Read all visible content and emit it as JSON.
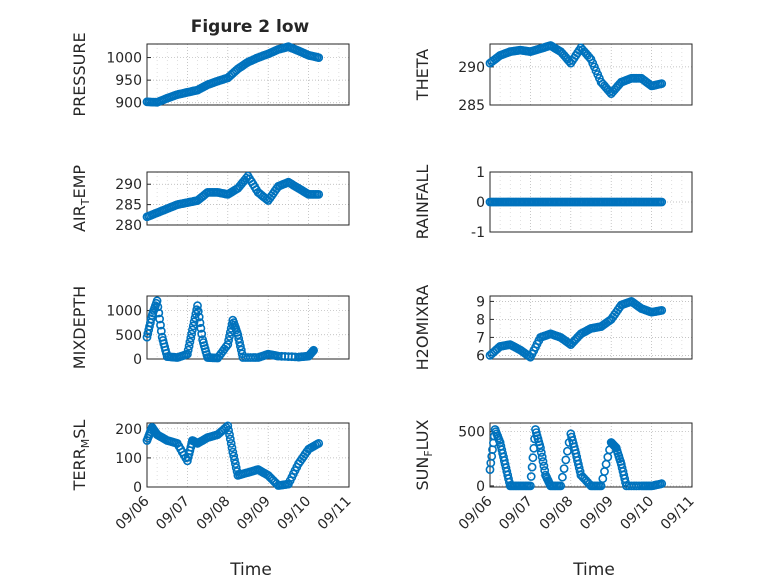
{
  "figure": {
    "title": "Figure 2 low",
    "time_label": "Time"
  },
  "colors": {
    "marker": "#0072BD",
    "axis": "#262626",
    "grid": "#b0b0b0",
    "background": "#ffffff"
  },
  "chart_data": [
    {
      "type": "scatter",
      "ylabel": "PRESSURE",
      "ylabel_sub": "",
      "ylim": [
        895,
        1030
      ],
      "yticks": [
        900,
        950,
        1000
      ],
      "x": [
        "09/06",
        "09/07",
        "09/08",
        "09/09",
        "09/10",
        "09/11"
      ],
      "grid": true,
      "series": [
        {
          "points": [
            [
              "2021-09-06T00:00",
              902
            ],
            [
              "2021-09-06T06:00",
              901
            ],
            [
              "2021-09-06T12:00",
              910
            ],
            [
              "2021-09-06T18:00",
              918
            ],
            [
              "2021-09-07T00:00",
              923
            ],
            [
              "2021-09-07T06:00",
              928
            ],
            [
              "2021-09-07T12:00",
              940
            ],
            [
              "2021-09-07T18:00",
              948
            ],
            [
              "2021-09-08T00:00",
              955
            ],
            [
              "2021-09-08T06:00",
              975
            ],
            [
              "2021-09-08T12:00",
              990
            ],
            [
              "2021-09-08T18:00",
              1000
            ],
            [
              "2021-09-09T00:00",
              1008
            ],
            [
              "2021-09-09T06:00",
              1018
            ],
            [
              "2021-09-09T12:00",
              1024
            ],
            [
              "2021-09-09T18:00",
              1015
            ],
            [
              "2021-09-10T00:00",
              1005
            ],
            [
              "2021-09-10T06:00",
              1000
            ]
          ]
        }
      ]
    },
    {
      "type": "scatter",
      "ylabel": "THETA",
      "ylabel_sub": "",
      "ylim": [
        285,
        293
      ],
      "yticks": [
        285,
        290
      ],
      "x": [
        "09/06",
        "09/07",
        "09/08",
        "09/09",
        "09/10",
        "09/11"
      ],
      "grid": true,
      "series": [
        {
          "points": [
            [
              "2021-09-06T00:00",
              290.5
            ],
            [
              "2021-09-06T06:00",
              291.5
            ],
            [
              "2021-09-06T12:00",
              292.0
            ],
            [
              "2021-09-06T18:00",
              292.2
            ],
            [
              "2021-09-07T00:00",
              292.0
            ],
            [
              "2021-09-07T06:00",
              292.4
            ],
            [
              "2021-09-07T12:00",
              292.8
            ],
            [
              "2021-09-07T18:00",
              292.0
            ],
            [
              "2021-09-08T00:00",
              290.5
            ],
            [
              "2021-09-08T06:00",
              292.5
            ],
            [
              "2021-09-08T12:00",
              291.0
            ],
            [
              "2021-09-08T18:00",
              288.0
            ],
            [
              "2021-09-09T00:00",
              286.5
            ],
            [
              "2021-09-09T06:00",
              288.0
            ],
            [
              "2021-09-09T12:00",
              288.5
            ],
            [
              "2021-09-09T18:00",
              288.5
            ],
            [
              "2021-09-10T00:00",
              287.5
            ],
            [
              "2021-09-10T06:00",
              287.8
            ]
          ]
        }
      ]
    },
    {
      "type": "scatter",
      "ylabel": "AIR",
      "ylabel_sub": "T",
      "ylabel_rest": "EMP",
      "ylim": [
        280,
        293
      ],
      "yticks": [
        280,
        285,
        290
      ],
      "x": [
        "09/06",
        "09/07",
        "09/08",
        "09/09",
        "09/10",
        "09/11"
      ],
      "grid": true,
      "series": [
        {
          "points": [
            [
              "2021-09-06T00:00",
              282.0
            ],
            [
              "2021-09-06T06:00",
              283.0
            ],
            [
              "2021-09-06T12:00",
              284.0
            ],
            [
              "2021-09-06T18:00",
              285.0
            ],
            [
              "2021-09-07T00:00",
              285.5
            ],
            [
              "2021-09-07T06:00",
              286.0
            ],
            [
              "2021-09-07T12:00",
              288.0
            ],
            [
              "2021-09-07T18:00",
              288.0
            ],
            [
              "2021-09-08T00:00",
              287.5
            ],
            [
              "2021-09-08T06:00",
              289.0
            ],
            [
              "2021-09-08T12:00",
              292.0
            ],
            [
              "2021-09-08T18:00",
              288.0
            ],
            [
              "2021-09-09T00:00",
              286.0
            ],
            [
              "2021-09-09T06:00",
              289.5
            ],
            [
              "2021-09-09T12:00",
              290.5
            ],
            [
              "2021-09-09T18:00",
              289.0
            ],
            [
              "2021-09-10T00:00",
              287.5
            ],
            [
              "2021-09-10T06:00",
              287.5
            ]
          ]
        }
      ]
    },
    {
      "type": "scatter",
      "ylabel": "RAINFALL",
      "ylabel_sub": "",
      "ylim": [
        -1,
        1
      ],
      "yticks": [
        -1,
        0,
        1
      ],
      "x": [
        "09/06",
        "09/07",
        "09/08",
        "09/09",
        "09/10",
        "09/11"
      ],
      "grid": true,
      "series": [
        {
          "points": [
            [
              "2021-09-06T00:00",
              0
            ],
            [
              "2021-09-06T06:00",
              0
            ],
            [
              "2021-09-06T12:00",
              0
            ],
            [
              "2021-09-06T18:00",
              0
            ],
            [
              "2021-09-07T00:00",
              0
            ],
            [
              "2021-09-07T06:00",
              0
            ],
            [
              "2021-09-07T12:00",
              0
            ],
            [
              "2021-09-07T18:00",
              0
            ],
            [
              "2021-09-08T00:00",
              0
            ],
            [
              "2021-09-08T06:00",
              0
            ],
            [
              "2021-09-08T12:00",
              0
            ],
            [
              "2021-09-08T18:00",
              0
            ],
            [
              "2021-09-09T00:00",
              0
            ],
            [
              "2021-09-09T06:00",
              0
            ],
            [
              "2021-09-09T12:00",
              0
            ],
            [
              "2021-09-09T18:00",
              0
            ],
            [
              "2021-09-10T00:00",
              0
            ],
            [
              "2021-09-10T06:00",
              0
            ]
          ]
        }
      ]
    },
    {
      "type": "scatter",
      "ylabel": "MIXDEPTH",
      "ylabel_sub": "",
      "ylim": [
        0,
        1300
      ],
      "yticks": [
        0,
        500,
        1000
      ],
      "x": [
        "09/06",
        "09/07",
        "09/08",
        "09/09",
        "09/10",
        "09/11"
      ],
      "grid": true,
      "series": [
        {
          "points": [
            [
              "2021-09-06T00:00",
              450
            ],
            [
              "2021-09-06T03:00",
              900
            ],
            [
              "2021-09-06T06:00",
              1200
            ],
            [
              "2021-09-06T09:00",
              450
            ],
            [
              "2021-09-06T12:00",
              50
            ],
            [
              "2021-09-06T18:00",
              30
            ],
            [
              "2021-09-07T00:00",
              100
            ],
            [
              "2021-09-07T03:00",
              600
            ],
            [
              "2021-09-07T06:00",
              1100
            ],
            [
              "2021-09-07T09:00",
              400
            ],
            [
              "2021-09-07T12:00",
              30
            ],
            [
              "2021-09-07T18:00",
              20
            ],
            [
              "2021-09-08T00:00",
              300
            ],
            [
              "2021-09-08T03:00",
              800
            ],
            [
              "2021-09-08T06:00",
              500
            ],
            [
              "2021-09-08T09:00",
              30
            ],
            [
              "2021-09-08T18:00",
              30
            ],
            [
              "2021-09-09T00:00",
              100
            ],
            [
              "2021-09-09T06:00",
              60
            ],
            [
              "2021-09-09T18:00",
              40
            ],
            [
              "2021-09-10T00:00",
              60
            ],
            [
              "2021-09-10T03:00",
              180
            ]
          ]
        }
      ]
    },
    {
      "type": "scatter",
      "ylabel": "H2OMIXRA",
      "ylabel_sub": "",
      "ylim": [
        5.8,
        9.3
      ],
      "yticks": [
        6,
        7,
        8,
        9
      ],
      "x": [
        "09/06",
        "09/07",
        "09/08",
        "09/09",
        "09/10",
        "09/11"
      ],
      "grid": true,
      "series": [
        {
          "points": [
            [
              "2021-09-06T00:00",
              6.0
            ],
            [
              "2021-09-06T06:00",
              6.5
            ],
            [
              "2021-09-06T12:00",
              6.6
            ],
            [
              "2021-09-06T18:00",
              6.3
            ],
            [
              "2021-09-07T00:00",
              5.9
            ],
            [
              "2021-09-07T06:00",
              7.0
            ],
            [
              "2021-09-07T12:00",
              7.2
            ],
            [
              "2021-09-07T18:00",
              7.0
            ],
            [
              "2021-09-08T00:00",
              6.6
            ],
            [
              "2021-09-08T06:00",
              7.2
            ],
            [
              "2021-09-08T12:00",
              7.5
            ],
            [
              "2021-09-08T18:00",
              7.6
            ],
            [
              "2021-09-09T00:00",
              8.0
            ],
            [
              "2021-09-09T06:00",
              8.8
            ],
            [
              "2021-09-09T12:00",
              9.0
            ],
            [
              "2021-09-09T18:00",
              8.6
            ],
            [
              "2021-09-10T00:00",
              8.4
            ],
            [
              "2021-09-10T06:00",
              8.5
            ]
          ]
        }
      ]
    },
    {
      "type": "scatter",
      "ylabel": "TERR",
      "ylabel_sub": "M",
      "ylabel_rest": "SL",
      "ylim": [
        0,
        220
      ],
      "yticks": [
        0,
        100,
        200
      ],
      "x": [
        "09/06",
        "09/07",
        "09/08",
        "09/09",
        "09/10",
        "09/11"
      ],
      "grid": true,
      "series": [
        {
          "points": [
            [
              "2021-09-06T00:00",
              160
            ],
            [
              "2021-09-06T03:00",
              205
            ],
            [
              "2021-09-06T06:00",
              180
            ],
            [
              "2021-09-06T12:00",
              160
            ],
            [
              "2021-09-06T18:00",
              150
            ],
            [
              "2021-09-07T00:00",
              90
            ],
            [
              "2021-09-07T03:00",
              160
            ],
            [
              "2021-09-07T06:00",
              150
            ],
            [
              "2021-09-07T12:00",
              170
            ],
            [
              "2021-09-07T18:00",
              180
            ],
            [
              "2021-09-08T00:00",
              210
            ],
            [
              "2021-09-08T03:00",
              120
            ],
            [
              "2021-09-08T06:00",
              40
            ],
            [
              "2021-09-08T12:00",
              50
            ],
            [
              "2021-09-08T18:00",
              60
            ],
            [
              "2021-09-09T00:00",
              40
            ],
            [
              "2021-09-09T06:00",
              5
            ],
            [
              "2021-09-09T12:00",
              10
            ],
            [
              "2021-09-09T18:00",
              80
            ],
            [
              "2021-09-10T00:00",
              130
            ],
            [
              "2021-09-10T06:00",
              150
            ]
          ]
        }
      ]
    },
    {
      "type": "scatter",
      "ylabel": "SUN",
      "ylabel_sub": "F",
      "ylabel_rest": "LUX",
      "ylim": [
        -10,
        580
      ],
      "yticks": [
        0,
        500
      ],
      "x": [
        "09/06",
        "09/07",
        "09/08",
        "09/09",
        "09/10",
        "09/11"
      ],
      "grid": true,
      "series": [
        {
          "points": [
            [
              "2021-09-06T00:00",
              150
            ],
            [
              "2021-09-06T03:00",
              520
            ],
            [
              "2021-09-06T06:00",
              400
            ],
            [
              "2021-09-06T09:00",
              200
            ],
            [
              "2021-09-06T12:00",
              0
            ],
            [
              "2021-09-06T18:00",
              0
            ],
            [
              "2021-09-07T00:00",
              0
            ],
            [
              "2021-09-07T03:00",
              520
            ],
            [
              "2021-09-07T06:00",
              350
            ],
            [
              "2021-09-07T09:00",
              100
            ],
            [
              "2021-09-07T12:00",
              0
            ],
            [
              "2021-09-07T18:00",
              0
            ],
            [
              "2021-09-08T00:00",
              480
            ],
            [
              "2021-09-08T03:00",
              300
            ],
            [
              "2021-09-08T06:00",
              100
            ],
            [
              "2021-09-08T12:00",
              0
            ],
            [
              "2021-09-08T18:00",
              0
            ],
            [
              "2021-09-09T00:00",
              400
            ],
            [
              "2021-09-09T03:00",
              350
            ],
            [
              "2021-09-09T06:00",
              200
            ],
            [
              "2021-09-09T09:00",
              0
            ],
            [
              "2021-09-09T18:00",
              0
            ],
            [
              "2021-09-10T00:00",
              0
            ],
            [
              "2021-09-10T06:00",
              20
            ]
          ]
        }
      ]
    }
  ]
}
